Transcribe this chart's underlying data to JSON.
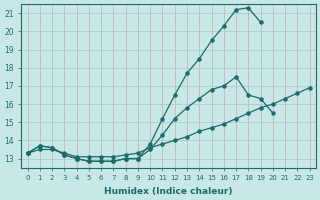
{
  "background_color": "#c8e8e8",
  "grid_color": "#b8d0d0",
  "line_color": "#1a6b6b",
  "xlabel": "Humidex (Indice chaleur)",
  "xlim": [
    -0.5,
    23.5
  ],
  "ylim": [
    12.5,
    21.5
  ],
  "yticks": [
    13,
    14,
    15,
    16,
    17,
    18,
    19,
    20,
    21
  ],
  "xticks": [
    0,
    1,
    2,
    3,
    4,
    5,
    6,
    7,
    8,
    9,
    10,
    11,
    12,
    13,
    14,
    15,
    16,
    17,
    18,
    19,
    20,
    21,
    22,
    23
  ],
  "curve_top_x": [
    0,
    1,
    2,
    3,
    4,
    5,
    6,
    7,
    8,
    9,
    10,
    11,
    12,
    13,
    14,
    15,
    16,
    17,
    18,
    19
  ],
  "curve_top_y": [
    13.3,
    13.7,
    13.6,
    13.2,
    13.0,
    12.85,
    12.85,
    12.85,
    13.0,
    13.0,
    13.8,
    15.2,
    16.5,
    17.7,
    18.5,
    19.5,
    20.3,
    21.2,
    21.3,
    20.5
  ],
  "curve_mid_x": [
    0,
    1,
    2,
    3,
    4,
    5,
    6,
    7,
    8,
    9,
    10,
    11,
    12,
    13,
    14,
    15,
    16,
    17,
    18,
    19,
    20
  ],
  "curve_mid_y": [
    13.3,
    13.7,
    13.6,
    13.2,
    13.0,
    12.85,
    12.85,
    12.85,
    13.0,
    13.0,
    13.5,
    14.3,
    15.2,
    15.8,
    16.3,
    16.8,
    17.0,
    17.5,
    16.5,
    16.3,
    15.5
  ],
  "curve_bot_x": [
    0,
    1,
    2,
    3,
    4,
    5,
    6,
    7,
    8,
    9,
    10,
    11,
    12,
    13,
    14,
    15,
    16,
    17,
    18,
    19,
    20,
    21,
    22,
    23
  ],
  "curve_bot_y": [
    13.3,
    13.5,
    13.5,
    13.3,
    13.1,
    13.1,
    13.1,
    13.1,
    13.2,
    13.3,
    13.6,
    13.8,
    14.0,
    14.2,
    14.5,
    14.7,
    14.9,
    15.2,
    15.5,
    15.8,
    16.0,
    16.3,
    16.6,
    16.9
  ]
}
